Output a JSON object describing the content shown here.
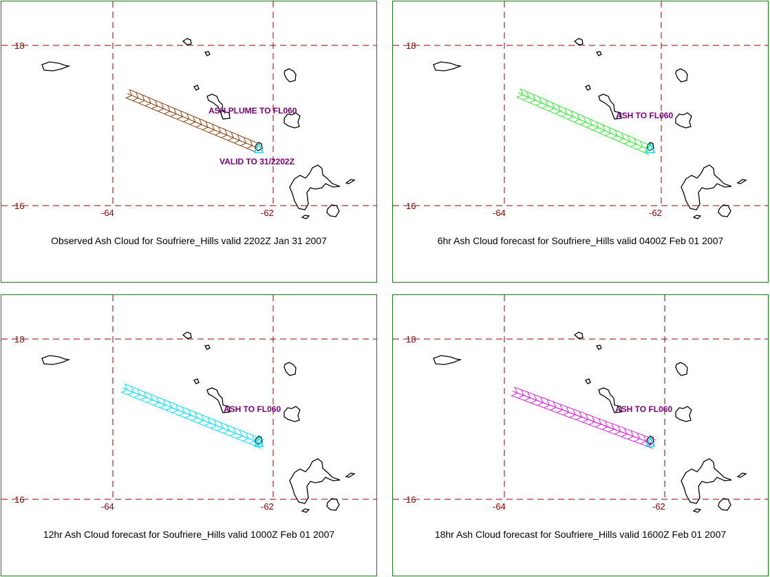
{
  "map": {
    "lat_labels": [
      "18",
      "16"
    ],
    "lon_labels": [
      "-64",
      "-62"
    ],
    "grid_color": "#8b0000",
    "coast_color": "#000000",
    "vent_color": "#00e0ff"
  },
  "panels": [
    {
      "caption": "Observed Ash Cloud for Soufriere_Hills valid 2202Z Jan 31 2007",
      "cloud_color": "#8b4513",
      "annotations": [
        "ASH PLUME TO FL060",
        "VALID TO 31/2202Z"
      ]
    },
    {
      "caption": "6hr Ash Cloud forecast for Soufriere_Hills valid 0400Z Feb 01 2007",
      "cloud_color": "#33ee33",
      "annotations": [
        "ASH TO FL060"
      ]
    },
    {
      "caption": "12hr Ash Cloud forecast for Soufriere_Hills valid 1000Z Feb 01 2007",
      "cloud_color": "#00e5ff",
      "annotations": [
        "ASH TO FL060"
      ]
    },
    {
      "caption": "18hr Ash Cloud forecast for Soufriere_Hills valid 1600Z Feb 01 2007",
      "cloud_color": "#e020e0",
      "annotations": [
        "ASH TO FL060"
      ]
    }
  ]
}
